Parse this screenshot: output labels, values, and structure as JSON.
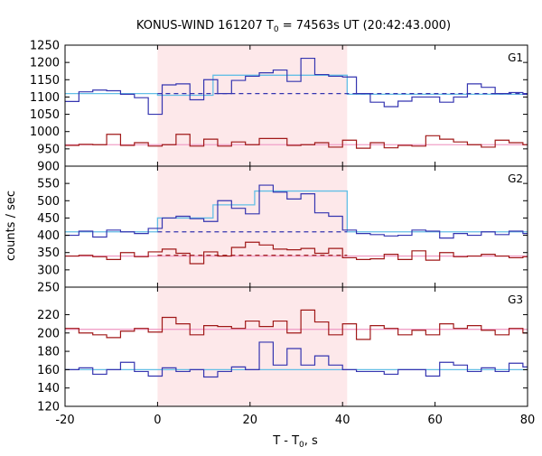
{
  "title_prefix": "KONUS-WIND 161207 T",
  "title_sub": "0",
  "title_suffix": " = 74563s UT (20:42:43.000)",
  "xlabel_prefix": "T - T",
  "xlabel_sub": "0",
  "xlabel_suffix": ", s",
  "ylabel": "counts / sec",
  "colors": {
    "pink_region": "#fde8ea",
    "blue_data": "#3535b0",
    "red_data": "#a01818",
    "blue_fit": "#64bfe6",
    "red_fit": "#f0a0c8",
    "axis": "#000000"
  },
  "chart_data": {
    "type": "line",
    "title": "KONUS-WIND 161207 T0 = 74563s UT (20:42:43.000)",
    "xlabel": "T - T0, s",
    "ylabel": "counts / sec",
    "xlim": [
      -20,
      80
    ],
    "xticks": [
      -20,
      0,
      20,
      40,
      60,
      80
    ],
    "shaded_interval": [
      0,
      41
    ],
    "panels": [
      {
        "label": "G1",
        "ylim": [
          900,
          1250
        ],
        "yticks": [
          900,
          950,
          1000,
          1050,
          1100,
          1150,
          1200,
          1250
        ],
        "series": [
          {
            "role": "blue_data",
            "edges": [
              -20,
              -17,
              -14,
              -11,
              -8,
              -5,
              -2,
              1,
              4,
              7,
              10,
              13,
              16,
              19,
              22,
              25,
              28,
              31,
              34,
              37,
              40,
              43,
              46,
              49,
              52,
              55,
              58,
              61,
              64,
              67,
              70,
              73,
              76,
              79,
              80
            ],
            "values": [
              1087,
              1115,
              1120,
              1118,
              1108,
              1098,
              1050,
              1135,
              1138,
              1092,
              1150,
              1110,
              1148,
              1160,
              1170,
              1178,
              1145,
              1212,
              1165,
              1160,
              1158,
              1110,
              1085,
              1072,
              1088,
              1100,
              1100,
              1085,
              1100,
              1138,
              1128,
              1110,
              1113,
              1108
            ]
          },
          {
            "role": "red_data",
            "edges": [
              -20,
              -17,
              -14,
              -11,
              -8,
              -5,
              -2,
              1,
              4,
              7,
              10,
              13,
              16,
              19,
              22,
              25,
              28,
              31,
              34,
              37,
              40,
              43,
              46,
              49,
              52,
              55,
              58,
              61,
              64,
              67,
              70,
              73,
              76,
              79,
              80
            ],
            "values": [
              960,
              963,
              962,
              992,
              960,
              968,
              958,
              962,
              992,
              958,
              978,
              958,
              970,
              962,
              980,
              980,
              960,
              962,
              968,
              955,
              975,
              952,
              968,
              953,
              960,
              958,
              988,
              978,
              970,
              962,
              955,
              975,
              968,
              962
            ]
          },
          {
            "role": "blue_fit",
            "edges": [
              -20,
              0,
              12,
              41,
              80
            ],
            "values": [
              1110,
              1105,
              1163,
              1108
            ]
          },
          {
            "role": "red_fit",
            "edges": [
              -20,
              80
            ],
            "values": [
              962
            ]
          },
          {
            "role": "blue_dashed",
            "x": [
              0,
              80
            ],
            "y": [
              1110,
              1110
            ]
          }
        ]
      },
      {
        "label": "G2",
        "ylim": [
          250,
          600
        ],
        "yticks": [
          250,
          300,
          350,
          400,
          450,
          500,
          550
        ],
        "series": [
          {
            "role": "blue_data",
            "edges": [
              -20,
              -17,
              -14,
              -11,
              -8,
              -5,
              -2,
              1,
              4,
              7,
              10,
              13,
              16,
              19,
              22,
              25,
              28,
              31,
              34,
              37,
              40,
              43,
              46,
              49,
              52,
              55,
              58,
              61,
              64,
              67,
              70,
              73,
              76,
              79,
              80
            ],
            "values": [
              400,
              412,
              395,
              415,
              410,
              405,
              420,
              450,
              455,
              448,
              440,
              500,
              478,
              462,
              545,
              525,
              505,
              520,
              465,
              455,
              415,
              405,
              402,
              398,
              400,
              415,
              412,
              392,
              405,
              400,
              410,
              402,
              412,
              405
            ]
          },
          {
            "role": "red_data",
            "edges": [
              -20,
              -17,
              -14,
              -11,
              -8,
              -5,
              -2,
              1,
              4,
              7,
              10,
              13,
              16,
              19,
              22,
              25,
              28,
              31,
              34,
              37,
              40,
              43,
              46,
              49,
              52,
              55,
              58,
              61,
              64,
              67,
              70,
              73,
              76,
              79,
              80
            ],
            "values": [
              340,
              342,
              338,
              330,
              350,
              338,
              352,
              360,
              348,
              318,
              352,
              340,
              365,
              380,
              372,
              360,
              358,
              362,
              348,
              362,
              335,
              330,
              332,
              345,
              330,
              355,
              328,
              350,
              338,
              340,
              345,
              340,
              335,
              338
            ]
          },
          {
            "role": "blue_fit",
            "edges": [
              -20,
              0,
              12,
              21,
              41,
              80
            ],
            "values": [
              410,
              450,
              488,
              528,
              410
            ]
          },
          {
            "role": "red_fit",
            "edges": [
              -20,
              80
            ],
            "values": [
              340
            ]
          },
          {
            "role": "blue_dashed",
            "x": [
              0,
              41
            ],
            "y": [
              410,
              410
            ]
          },
          {
            "role": "red_dashed",
            "x": [
              0,
              41
            ],
            "y": [
              342,
              342
            ]
          }
        ]
      },
      {
        "label": "G3",
        "ylim": [
          120,
          250
        ],
        "yticks": [
          120,
          140,
          160,
          180,
          200,
          220
        ],
        "series": [
          {
            "role": "blue_data",
            "edges": [
              -20,
              -17,
              -14,
              -11,
              -8,
              -5,
              -2,
              1,
              4,
              7,
              10,
              13,
              16,
              19,
              22,
              25,
              28,
              31,
              34,
              37,
              40,
              43,
              46,
              49,
              52,
              55,
              58,
              61,
              64,
              67,
              70,
              73,
              76,
              79,
              80
            ],
            "values": [
              160,
              162,
              155,
              160,
              168,
              158,
              153,
              162,
              158,
              160,
              152,
              158,
              163,
              160,
              190,
              165,
              183,
              165,
              175,
              165,
              160,
              158,
              158,
              155,
              160,
              160,
              153,
              168,
              165,
              158,
              162,
              158,
              167,
              163
            ]
          },
          {
            "role": "red_data",
            "edges": [
              -20,
              -17,
              -14,
              -11,
              -8,
              -5,
              -2,
              1,
              4,
              7,
              10,
              13,
              16,
              19,
              22,
              25,
              28,
              31,
              34,
              37,
              40,
              43,
              46,
              49,
              52,
              55,
              58,
              61,
              64,
              67,
              70,
              73,
              76,
              79,
              80
            ],
            "values": [
              205,
              200,
              198,
              195,
              202,
              205,
              201,
              217,
              210,
              198,
              208,
              207,
              205,
              213,
              207,
              213,
              200,
              225,
              212,
              198,
              210,
              193,
              208,
              205,
              198,
              203,
              198,
              210,
              205,
              208,
              203,
              198,
              205,
              200
            ]
          },
          {
            "role": "blue_fit",
            "edges": [
              -20,
              80
            ],
            "values": [
              160
            ]
          },
          {
            "role": "red_fit",
            "edges": [
              -20,
              80
            ],
            "values": [
              204
            ]
          }
        ]
      }
    ]
  }
}
